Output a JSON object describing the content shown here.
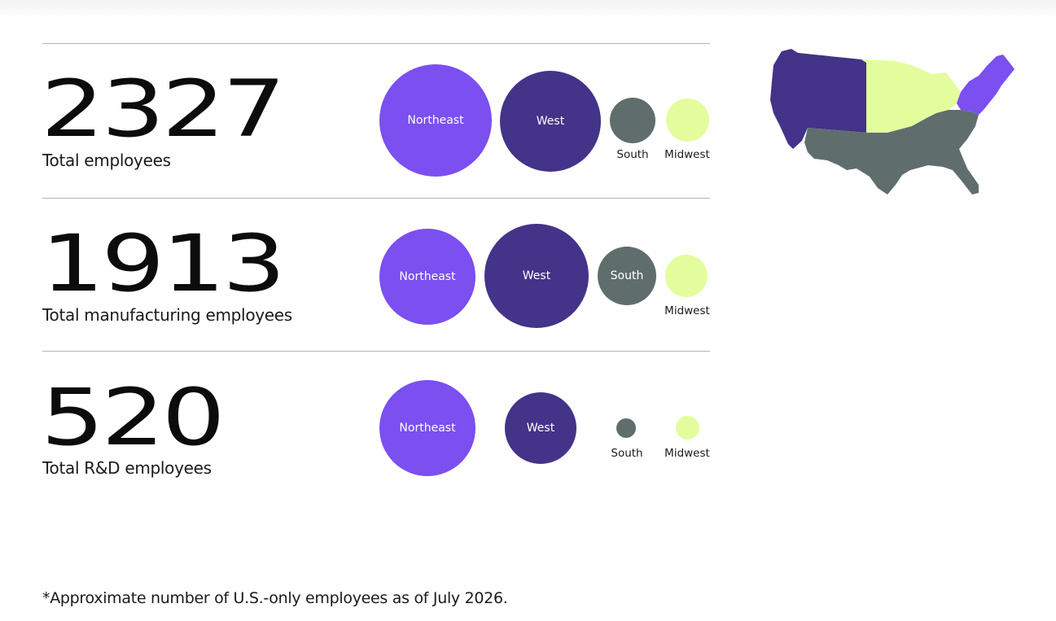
{
  "colors": {
    "northeast": "#7b4ff0",
    "west": "#433389",
    "south": "#5f6e6c",
    "midwest": "#e3fd9c"
  },
  "stats": [
    {
      "number": "2327",
      "label": "Total employees",
      "regions": {
        "northeast": {
          "name": "Northeast"
        },
        "west": {
          "name": "West"
        },
        "south": {
          "name": "South"
        },
        "midwest": {
          "name": "Midwest"
        }
      }
    },
    {
      "number": "1913",
      "label": "Total manufacturing employees",
      "regions": {
        "northeast": {
          "name": "Northeast"
        },
        "west": {
          "name": "West"
        },
        "south": {
          "name": "South"
        },
        "midwest": {
          "name": "Midwest"
        }
      }
    },
    {
      "number": "520",
      "label": "Total R&D employees",
      "regions": {
        "northeast": {
          "name": "Northeast"
        },
        "west": {
          "name": "West"
        },
        "south": {
          "name": "South"
        },
        "midwest": {
          "name": "Midwest"
        }
      }
    }
  ],
  "footnote": "*Approximate number of U.S.-only employees as of July 2026."
}
